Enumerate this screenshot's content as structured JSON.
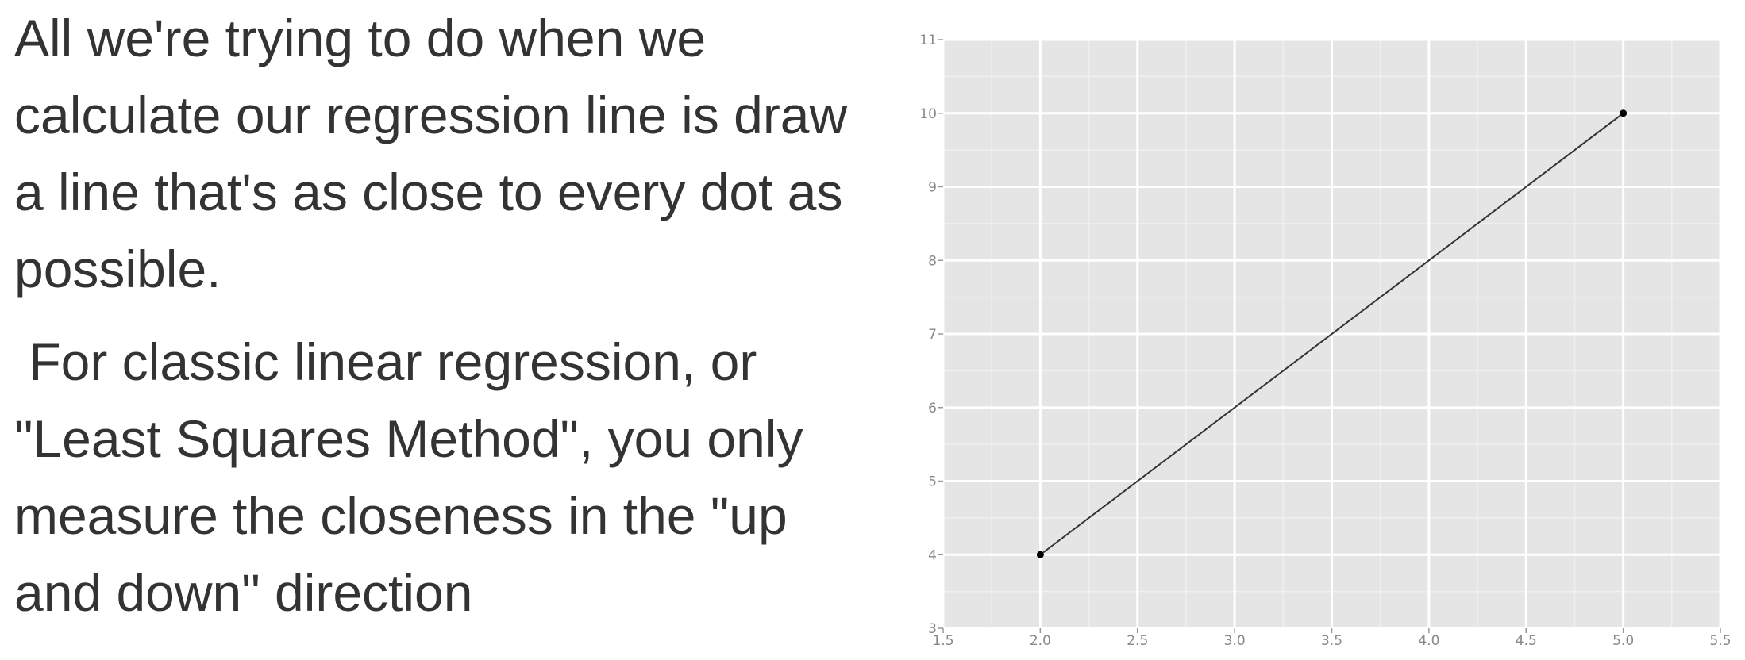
{
  "text": {
    "paragraph_1": "All we're trying to do when we calculate our regression line is draw a line that's as close to every dot as possible.",
    "paragraph_2": " For classic linear regression, or \"Least Squares Method\", you only measure the closeness in the \"up and down\" direction"
  },
  "chart_data": {
    "type": "line",
    "title": "",
    "xlabel": "",
    "ylabel": "",
    "xlim": [
      1.5,
      5.5
    ],
    "ylim": [
      3,
      11
    ],
    "x_ticks": [
      "1.5",
      "2.0",
      "2.5",
      "3.0",
      "3.5",
      "4.0",
      "4.5",
      "5.0",
      "5.5"
    ],
    "y_ticks": [
      "3",
      "4",
      "5",
      "6",
      "7",
      "8",
      "9",
      "10",
      "11"
    ],
    "grid": true,
    "series": [
      {
        "points": [
          {
            "x": 2.0,
            "y": 4
          },
          {
            "x": 5.0,
            "y": 10
          }
        ]
      }
    ],
    "colors": {
      "panel_background": "#e5e5e5",
      "grid_major": "#ffffff",
      "grid_minor": "#f0f0f0",
      "line": "#333333",
      "point": "#000000",
      "tick_label": "#888888"
    }
  }
}
